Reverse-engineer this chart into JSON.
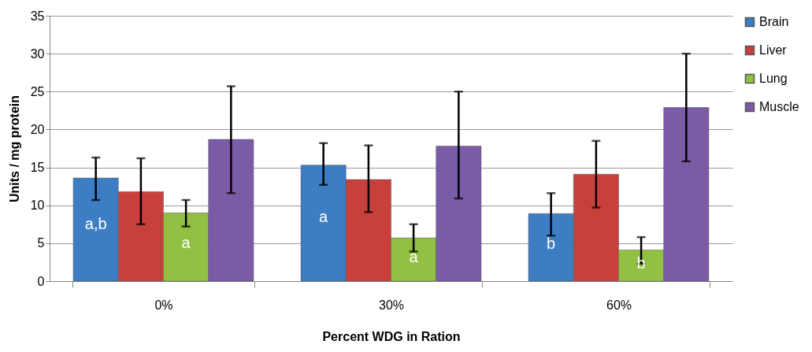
{
  "chart_data": {
    "type": "bar",
    "xlabel": "Percent WDG in Ration",
    "ylabel": "Units / mg protein",
    "categories": [
      "0%",
      "30%",
      "60%"
    ],
    "series": [
      {
        "name": "Brain",
        "color": "#3c7dc4",
        "values": [
          13.6,
          15.3,
          8.9
        ],
        "errors": [
          [
            10.7,
            16.3
          ],
          [
            12.7,
            18.2
          ],
          [
            6.0,
            11.6
          ]
        ],
        "value_labels": [
          "a,b",
          "a",
          "b"
        ]
      },
      {
        "name": "Liver",
        "color": "#c8403c",
        "values": [
          11.8,
          13.4,
          14.1
        ],
        "errors": [
          [
            7.5,
            16.2
          ],
          [
            9.1,
            17.9
          ],
          [
            9.7,
            18.5
          ]
        ]
      },
      {
        "name": "Lung",
        "color": "#92c043",
        "values": [
          9.0,
          5.7,
          4.1
        ],
        "errors": [
          [
            7.2,
            10.7
          ],
          [
            3.9,
            7.5
          ],
          [
            2.3,
            5.8
          ]
        ],
        "value_labels": [
          "a",
          "a",
          "b"
        ]
      },
      {
        "name": "Muscle",
        "color": "#7b5ba6",
        "values": [
          18.7,
          17.8,
          22.9
        ],
        "errors": [
          [
            11.6,
            25.7
          ],
          [
            10.9,
            25.0
          ],
          [
            15.8,
            30.0
          ]
        ]
      }
    ],
    "ylim": [
      0,
      35
    ],
    "yticks": [
      0,
      5,
      10,
      15,
      20,
      25,
      30,
      35
    ],
    "grid": "y",
    "legend": "right"
  }
}
